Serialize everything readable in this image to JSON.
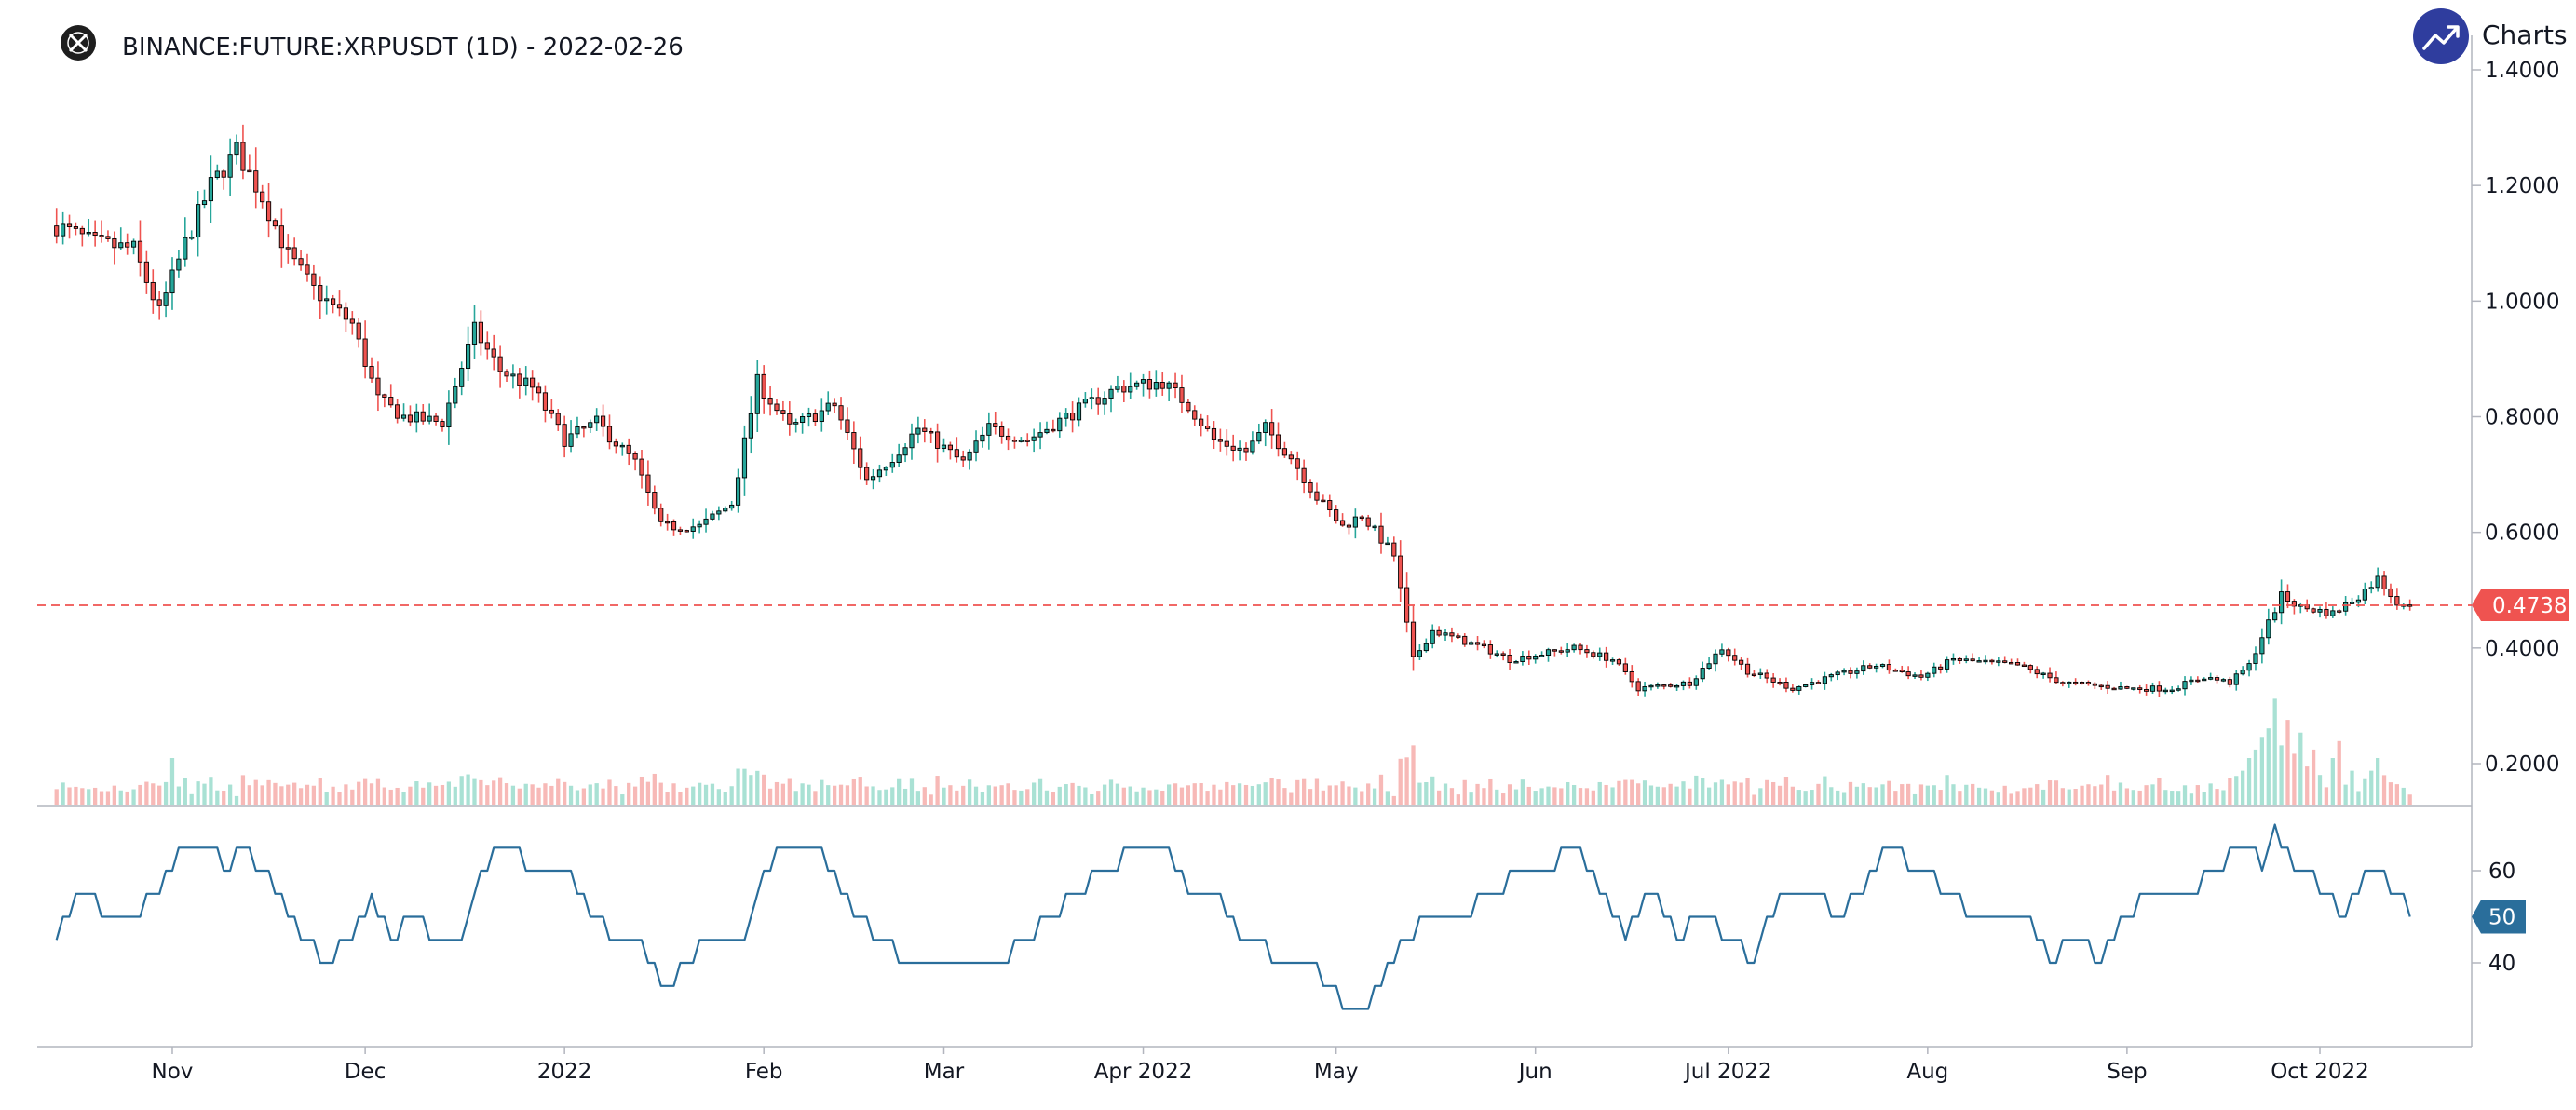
{
  "header": {
    "title": "BINANCE:FUTURE:XRPUSDT (1D) - 2022-02-26",
    "logo_icon": "exchange-logo-icon"
  },
  "brand": {
    "label": "Charts p",
    "icon": "trend-arrow-icon",
    "color": "#2f3d9e"
  },
  "colors": {
    "up": "#26a69a",
    "down": "#ef5350",
    "vol_up": "#a9e1d4",
    "vol_down": "#f7b9b7",
    "indicator": "#2a6e9b",
    "last_price": "#ef5350",
    "axis": "#9598a1"
  },
  "chart_data": [
    {
      "type": "candlestick",
      "ylim": [
        0.12,
        1.42
      ],
      "y_ticks": [
        "1.4000",
        "1.2000",
        "1.0000",
        "0.8000",
        "0.6000",
        "0.4000",
        "0.2000"
      ],
      "y_tick_values": [
        1.4,
        1.2,
        1.0,
        0.8,
        0.6,
        0.4,
        0.2
      ],
      "x_labels": [
        "Nov",
        "Dec",
        "2022",
        "Feb",
        "Mar",
        "Apr 2022",
        "May",
        "Jun",
        "Jul 2022",
        "Aug",
        "Sep",
        "Oct 2022"
      ],
      "x_label_days": [
        18,
        48,
        79,
        110,
        138,
        169,
        199,
        230,
        260,
        291,
        322,
        352
      ],
      "x_range_days": [
        -3,
        373
      ],
      "last_price": 0.4738,
      "last_price_label": "0.4738",
      "anchors": [
        [
          0,
          1.13
        ],
        [
          6,
          1.1
        ],
        [
          12,
          1.09
        ],
        [
          16,
          0.98
        ],
        [
          20,
          1.1
        ],
        [
          24,
          1.2
        ],
        [
          28,
          1.26
        ],
        [
          32,
          1.18
        ],
        [
          36,
          1.08
        ],
        [
          40,
          1.02
        ],
        [
          46,
          0.96
        ],
        [
          50,
          0.83
        ],
        [
          54,
          0.8
        ],
        [
          60,
          0.79
        ],
        [
          65,
          0.95
        ],
        [
          69,
          0.88
        ],
        [
          74,
          0.85
        ],
        [
          79,
          0.76
        ],
        [
          84,
          0.79
        ],
        [
          90,
          0.72
        ],
        [
          94,
          0.61
        ],
        [
          100,
          0.61
        ],
        [
          105,
          0.65
        ],
        [
          109,
          0.86
        ],
        [
          114,
          0.78
        ],
        [
          121,
          0.82
        ],
        [
          126,
          0.69
        ],
        [
          130,
          0.73
        ],
        [
          134,
          0.78
        ],
        [
          141,
          0.72
        ],
        [
          145,
          0.78
        ],
        [
          151,
          0.76
        ],
        [
          157,
          0.8
        ],
        [
          165,
          0.85
        ],
        [
          172,
          0.86
        ],
        [
          176,
          0.82
        ],
        [
          180,
          0.76
        ],
        [
          185,
          0.74
        ],
        [
          188,
          0.78
        ],
        [
          192,
          0.73
        ],
        [
          196,
          0.66
        ],
        [
          200,
          0.61
        ],
        [
          203,
          0.63
        ],
        [
          208,
          0.56
        ],
        [
          211,
          0.38
        ],
        [
          214,
          0.43
        ],
        [
          222,
          0.4
        ],
        [
          226,
          0.38
        ],
        [
          236,
          0.4
        ],
        [
          242,
          0.38
        ],
        [
          246,
          0.33
        ],
        [
          254,
          0.34
        ],
        [
          259,
          0.4
        ],
        [
          263,
          0.36
        ],
        [
          270,
          0.33
        ],
        [
          276,
          0.35
        ],
        [
          283,
          0.37
        ],
        [
          290,
          0.35
        ],
        [
          295,
          0.38
        ],
        [
          305,
          0.37
        ],
        [
          312,
          0.34
        ],
        [
          322,
          0.33
        ],
        [
          329,
          0.33
        ],
        [
          334,
          0.35
        ],
        [
          338,
          0.34
        ],
        [
          341,
          0.37
        ],
        [
          343,
          0.42
        ],
        [
          346,
          0.49
        ],
        [
          349,
          0.47
        ],
        [
          354,
          0.46
        ],
        [
          358,
          0.49
        ],
        [
          361,
          0.52
        ],
        [
          364,
          0.48
        ],
        [
          366,
          0.4738
        ]
      ],
      "volume_spikes": [
        [
          15,
          5
        ],
        [
          18,
          11
        ],
        [
          28,
          2
        ],
        [
          49,
          4
        ],
        [
          49,
          5
        ],
        [
          108,
          7
        ],
        [
          116,
          5
        ],
        [
          131,
          4
        ],
        [
          131,
          6
        ],
        [
          148,
          5
        ],
        [
          153,
          6
        ],
        [
          184,
          5
        ],
        [
          208,
          2
        ],
        [
          211,
          14
        ],
        [
          246,
          5
        ],
        [
          299,
          4
        ],
        [
          319,
          7
        ],
        [
          340,
          8
        ],
        [
          341,
          11
        ],
        [
          342,
          13
        ],
        [
          343,
          16
        ],
        [
          344,
          18
        ],
        [
          345,
          25
        ],
        [
          346,
          14
        ],
        [
          347,
          20
        ],
        [
          348,
          12
        ],
        [
          349,
          17
        ],
        [
          350,
          9
        ],
        [
          351,
          13
        ],
        [
          352,
          7
        ],
        [
          354,
          11
        ],
        [
          355,
          15
        ],
        [
          357,
          8
        ],
        [
          359,
          6
        ],
        [
          360,
          8
        ],
        [
          361,
          11
        ]
      ],
      "volume_max": 33
    },
    {
      "type": "line",
      "name": "50",
      "ylim": [
        25,
        72
      ],
      "y_ticks": [
        "60",
        "40"
      ],
      "y_tick_values": [
        60,
        40
      ],
      "last_value": 50,
      "last_value_label": "50",
      "anchors": [
        [
          0,
          45
        ],
        [
          4,
          55
        ],
        [
          8,
          50
        ],
        [
          12,
          50
        ],
        [
          16,
          55
        ],
        [
          19,
          65
        ],
        [
          24,
          65
        ],
        [
          26,
          60
        ],
        [
          29,
          65
        ],
        [
          32,
          60
        ],
        [
          36,
          50
        ],
        [
          39,
          45
        ],
        [
          42,
          40
        ],
        [
          46,
          45
        ],
        [
          49,
          55
        ],
        [
          52,
          45
        ],
        [
          56,
          50
        ],
        [
          59,
          45
        ],
        [
          63,
          45
        ],
        [
          66,
          60
        ],
        [
          70,
          65
        ],
        [
          75,
          60
        ],
        [
          79,
          60
        ],
        [
          83,
          50
        ],
        [
          87,
          45
        ],
        [
          90,
          45
        ],
        [
          95,
          35
        ],
        [
          98,
          40
        ],
        [
          102,
          45
        ],
        [
          107,
          45
        ],
        [
          110,
          60
        ],
        [
          113,
          65
        ],
        [
          118,
          65
        ],
        [
          122,
          55
        ],
        [
          128,
          45
        ],
        [
          132,
          40
        ],
        [
          138,
          38
        ],
        [
          143,
          40
        ],
        [
          147,
          40
        ],
        [
          150,
          45
        ],
        [
          155,
          50
        ],
        [
          159,
          55
        ],
        [
          163,
          60
        ],
        [
          168,
          65
        ],
        [
          172,
          65
        ],
        [
          176,
          55
        ],
        [
          180,
          55
        ],
        [
          184,
          45
        ],
        [
          187,
          45
        ],
        [
          190,
          40
        ],
        [
          194,
          40
        ],
        [
          198,
          35
        ],
        [
          201,
          30
        ],
        [
          203,
          28
        ],
        [
          206,
          35
        ],
        [
          210,
          45
        ],
        [
          214,
          50
        ],
        [
          219,
          50
        ],
        [
          223,
          55
        ],
        [
          228,
          60
        ],
        [
          232,
          60
        ],
        [
          236,
          65
        ],
        [
          240,
          55
        ],
        [
          244,
          45
        ],
        [
          248,
          55
        ],
        [
          252,
          45
        ],
        [
          256,
          50
        ],
        [
          260,
          45
        ],
        [
          264,
          40
        ],
        [
          268,
          55
        ],
        [
          273,
          55
        ],
        [
          277,
          50
        ],
        [
          281,
          55
        ],
        [
          285,
          65
        ],
        [
          290,
          60
        ],
        [
          294,
          55
        ],
        [
          298,
          50
        ],
        [
          306,
          50
        ],
        [
          310,
          40
        ],
        [
          314,
          45
        ],
        [
          318,
          40
        ],
        [
          322,
          50
        ],
        [
          326,
          55
        ],
        [
          332,
          55
        ],
        [
          336,
          60
        ],
        [
          340,
          65
        ],
        [
          343,
          62
        ],
        [
          345,
          68
        ],
        [
          348,
          60
        ],
        [
          350,
          60
        ],
        [
          353,
          55
        ],
        [
          356,
          50
        ],
        [
          360,
          60
        ],
        [
          364,
          55
        ],
        [
          366,
          50
        ]
      ]
    }
  ]
}
